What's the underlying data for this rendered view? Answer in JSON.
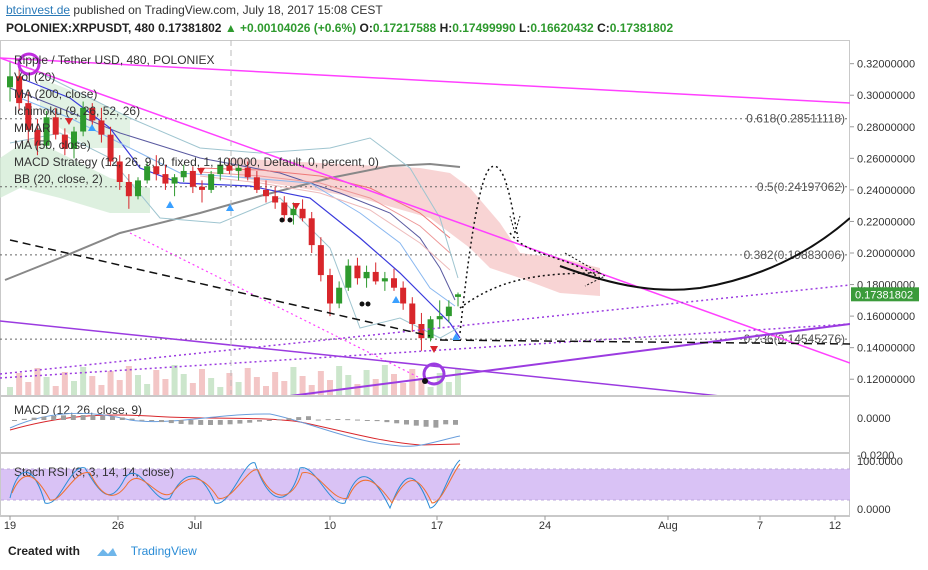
{
  "header": {
    "site": "btcinvest.de",
    "published": "published on TradingView.com, July 18, 2017 15:08 CEST",
    "symbol_line": "POLONIEX:XRPUSDT, 480",
    "last": "0.17381802",
    "change": "+0.00104026 (+0.6%)",
    "o_label": "O:",
    "o": "0.17217588",
    "h_label": "H:",
    "h": "0.17499990",
    "l_label": "L:",
    "l": "0.16620432",
    "c_label": "C:",
    "c": "0.17381802"
  },
  "legend": [
    "Ripple / Tether USD, 480, POLONIEX",
    "Vol (20)",
    "MA (200, close)",
    "Ichimoku (9, 26, 52, 26)",
    "MMAR",
    "MA (50, close)",
    "MACD Strategy (12, 26, 9, 0, fixed, 1, 100000, Default, 0, percent, 0)",
    "BB (20, close, 2)"
  ],
  "macd_label": "MACD (12, 26, close, 9)",
  "stoch_label": "Stoch RSI (3, 3, 14, 14, close)",
  "footer": {
    "created_with": "Created with",
    "brand": "TradingView"
  },
  "colors": {
    "up": "#2e9a2e",
    "down": "#d8262b",
    "fib": "#ff40ff",
    "trend_purple": "#9b3be0",
    "price_label_bg": "#3b9b3b",
    "stoch_band": "#d9c2f5",
    "cloud_red": "#f6c6c6",
    "cloud_green": "#cfe9d2"
  },
  "chart_data": {
    "type": "candlestick",
    "symbol": "POLONIEX:XRPUSDT",
    "timeframe": "480",
    "ylim": [
      0.11,
      0.335
    ],
    "y_ticks": [
      0.12,
      0.14,
      0.16,
      0.18,
      0.2,
      0.22,
      0.24,
      0.26,
      0.28,
      0.3,
      0.32
    ],
    "y_tick_labels": [
      "0.12000000",
      "0.14000000",
      "0.16000000",
      "0.18000000",
      "0.20000000",
      "0.22000000",
      "0.24000000",
      "0.26000000",
      "0.28000000",
      "0.30000000",
      "0.32000000"
    ],
    "last_price": 0.17381802,
    "last_price_label": "0.17381802",
    "x_labels": [
      "19",
      "26",
      "Jul",
      "10",
      "17",
      "24",
      "Aug",
      "7",
      "12"
    ],
    "fib_levels": [
      {
        "value": 0.28511118,
        "label": "0.618(0.28511118)"
      },
      {
        "value": 0.24197062,
        "label": "0.5(0.24197062)"
      },
      {
        "value": 0.19883006,
        "label": "0.382(0.19883006)"
      },
      {
        "value": 0.14545276,
        "label": "0.236(0.14545276)"
      }
    ],
    "candles": [
      [
        0.305,
        0.322,
        0.296,
        0.312
      ],
      [
        0.312,
        0.318,
        0.29,
        0.295
      ],
      [
        0.295,
        0.302,
        0.27,
        0.278
      ],
      [
        0.278,
        0.285,
        0.262,
        0.268
      ],
      [
        0.268,
        0.29,
        0.266,
        0.286
      ],
      [
        0.286,
        0.292,
        0.272,
        0.275
      ],
      [
        0.275,
        0.279,
        0.262,
        0.266
      ],
      [
        0.266,
        0.28,
        0.26,
        0.277
      ],
      [
        0.277,
        0.296,
        0.274,
        0.292
      ],
      [
        0.292,
        0.295,
        0.28,
        0.284
      ],
      [
        0.284,
        0.292,
        0.27,
        0.275
      ],
      [
        0.275,
        0.28,
        0.255,
        0.258
      ],
      [
        0.258,
        0.262,
        0.24,
        0.245
      ],
      [
        0.245,
        0.25,
        0.228,
        0.236
      ],
      [
        0.236,
        0.248,
        0.234,
        0.246
      ],
      [
        0.246,
        0.258,
        0.244,
        0.255
      ],
      [
        0.255,
        0.262,
        0.246,
        0.25
      ],
      [
        0.25,
        0.256,
        0.24,
        0.244
      ],
      [
        0.244,
        0.25,
        0.236,
        0.248
      ],
      [
        0.248,
        0.256,
        0.245,
        0.252
      ],
      [
        0.252,
        0.255,
        0.238,
        0.242
      ],
      [
        0.242,
        0.246,
        0.232,
        0.24
      ],
      [
        0.24,
        0.252,
        0.238,
        0.25
      ],
      [
        0.25,
        0.258,
        0.246,
        0.256
      ],
      [
        0.256,
        0.26,
        0.25,
        0.252
      ],
      [
        0.252,
        0.256,
        0.246,
        0.254
      ],
      [
        0.254,
        0.258,
        0.246,
        0.248
      ],
      [
        0.248,
        0.252,
        0.238,
        0.24
      ],
      [
        0.24,
        0.246,
        0.232,
        0.236
      ],
      [
        0.236,
        0.242,
        0.228,
        0.232
      ],
      [
        0.232,
        0.236,
        0.22,
        0.224
      ],
      [
        0.224,
        0.232,
        0.218,
        0.228
      ],
      [
        0.228,
        0.234,
        0.22,
        0.222
      ],
      [
        0.222,
        0.226,
        0.2,
        0.205
      ],
      [
        0.205,
        0.21,
        0.182,
        0.186
      ],
      [
        0.186,
        0.19,
        0.16,
        0.168
      ],
      [
        0.168,
        0.182,
        0.165,
        0.178
      ],
      [
        0.178,
        0.196,
        0.176,
        0.192
      ],
      [
        0.192,
        0.197,
        0.18,
        0.184
      ],
      [
        0.184,
        0.192,
        0.178,
        0.188
      ],
      [
        0.188,
        0.194,
        0.18,
        0.182
      ],
      [
        0.182,
        0.188,
        0.176,
        0.184
      ],
      [
        0.184,
        0.19,
        0.176,
        0.178
      ],
      [
        0.178,
        0.182,
        0.164,
        0.168
      ],
      [
        0.168,
        0.172,
        0.15,
        0.155
      ],
      [
        0.155,
        0.162,
        0.138,
        0.146
      ],
      [
        0.146,
        0.16,
        0.144,
        0.158
      ],
      [
        0.158,
        0.17,
        0.152,
        0.16
      ],
      [
        0.16,
        0.17,
        0.156,
        0.166
      ],
      [
        0.17217588,
        0.1749999,
        0.16620432,
        0.17381802
      ]
    ]
  }
}
